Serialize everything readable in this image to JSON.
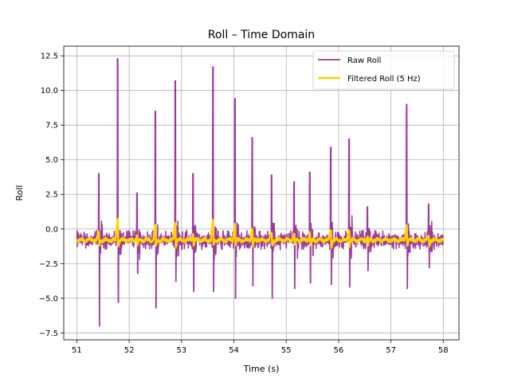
{
  "chart_data": {
    "type": "line",
    "title": "Roll – Time Domain",
    "xlabel": "Time (s)",
    "ylabel": "Roll",
    "xlim": [
      50.75,
      58.3
    ],
    "ylim": [
      -8.0,
      13.2
    ],
    "grid": true,
    "legend_position": "top-right",
    "x_ticks": [
      51,
      52,
      53,
      54,
      55,
      56,
      57,
      58
    ],
    "x_tick_labels": [
      "51",
      "52",
      "53",
      "54",
      "55",
      "56",
      "57",
      "58"
    ],
    "y_ticks": [
      -7.5,
      -5.0,
      -2.5,
      0.0,
      2.5,
      5.0,
      7.5,
      10.0,
      12.5
    ],
    "y_tick_labels": [
      "−7.5",
      "−5.0",
      "−2.5",
      "0.0",
      "2.5",
      "5.0",
      "7.5",
      "10.0",
      "12.5"
    ],
    "x_start": 51.0,
    "x_end": 58.0,
    "sample_step": 0.005,
    "series": [
      {
        "name": "Raw Roll",
        "color": "#8b1a8b",
        "baseline": -0.8,
        "noise_amplitude": 0.7,
        "events": [
          {
            "t": 51.42,
            "up": 4.0,
            "down": -7.0
          },
          {
            "t": 51.78,
            "up": 12.3,
            "down": -5.3
          },
          {
            "t": 52.15,
            "up": 2.6,
            "down": -3.2
          },
          {
            "t": 52.5,
            "up": 8.5,
            "down": -5.7
          },
          {
            "t": 52.88,
            "up": 10.7,
            "down": -3.8
          },
          {
            "t": 53.22,
            "up": 4.0,
            "down": -4.5
          },
          {
            "t": 53.6,
            "up": 11.7,
            "down": -4.5
          },
          {
            "t": 54.02,
            "up": 9.4,
            "down": -5.0
          },
          {
            "t": 54.35,
            "up": 6.6,
            "down": -4.1
          },
          {
            "t": 54.72,
            "up": 3.9,
            "down": -5.0
          },
          {
            "t": 55.15,
            "up": 3.4,
            "down": -4.3
          },
          {
            "t": 55.45,
            "up": 4.1,
            "down": -3.9
          },
          {
            "t": 55.85,
            "up": 5.9,
            "down": -4.0
          },
          {
            "t": 56.2,
            "up": 6.5,
            "down": -4.2
          },
          {
            "t": 56.55,
            "up": 1.6,
            "down": -3.0
          },
          {
            "t": 57.3,
            "up": 9.0,
            "down": -4.3
          },
          {
            "t": 57.72,
            "up": 1.8,
            "down": -2.8
          }
        ]
      },
      {
        "name": "Filtered Roll (5 Hz)",
        "color": "#ffd200",
        "baseline": -0.8,
        "noise_amplitude": 0.2,
        "event_peak": 0.7,
        "event_trough": -1.7
      }
    ]
  }
}
